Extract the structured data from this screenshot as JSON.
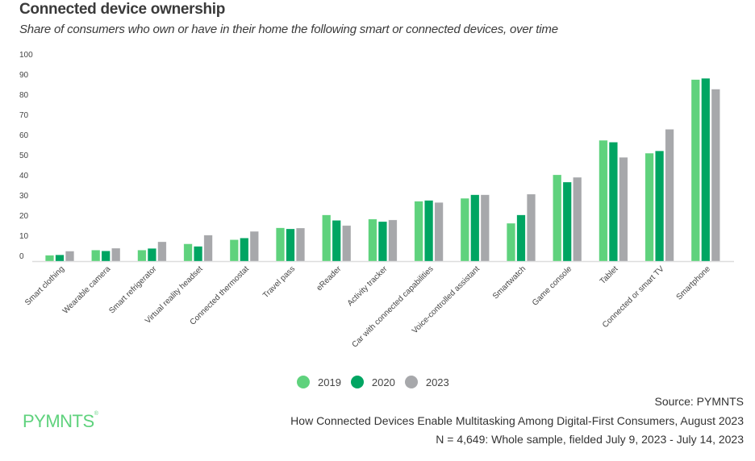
{
  "chart_data": {
    "type": "bar",
    "title": "Connected device ownership",
    "subtitle": "Share of consumers who own or have in their home the following smart or connected devices, over time",
    "categories": [
      "Smart clothing",
      "Wearable camera",
      "Smart refrigerator",
      "Virtual reality headset",
      "Connected thermostat",
      "Travel pass",
      "eReader",
      "Activity tracker",
      "Car with connected capabilities",
      "Voice-controlled assistant",
      "Smartwatch",
      "Game console",
      "Tablet",
      "Connected or smart TV",
      "Smartphone"
    ],
    "series": [
      {
        "name": "2019",
        "color": "#5fd27d",
        "values": [
          2.8,
          5.3,
          5.3,
          8.3,
          10.3,
          16.0,
          22.2,
          20.2,
          28.8,
          30.2,
          18.2,
          41.5,
          58.1,
          51.9,
          87.3
        ]
      },
      {
        "name": "2020",
        "color": "#00a562",
        "values": [
          3.0,
          4.9,
          6.1,
          7.1,
          11.1,
          15.5,
          19.6,
          19.0,
          29.2,
          31.9,
          22.2,
          38.0,
          57.2,
          53.0,
          87.9
        ]
      },
      {
        "name": "2023",
        "color": "#a7a8ab",
        "values": [
          4.8,
          6.2,
          9.3,
          12.5,
          14.3,
          15.9,
          17.1,
          19.8,
          28.2,
          31.9,
          32.2,
          40.3,
          49.9,
          63.4,
          82.7
        ]
      }
    ],
    "ylim": [
      0,
      100
    ],
    "yticks": [
      "0",
      "10",
      "20",
      "30",
      "40",
      "50",
      "60",
      "70",
      "80",
      "90",
      "100"
    ],
    "grid": false,
    "legend": "bottom"
  },
  "legend": [
    "2019",
    "2020",
    "2023"
  ],
  "logo": "PYMNTS",
  "footer": {
    "source": "Source: PYMNTS",
    "report": "How Connected Devices Enable Multitasking Among Digital-First Consumers, August 2023",
    "sample": "N = 4,649: Whole sample, fielded July 9, 2023 - July 14, 2023"
  }
}
